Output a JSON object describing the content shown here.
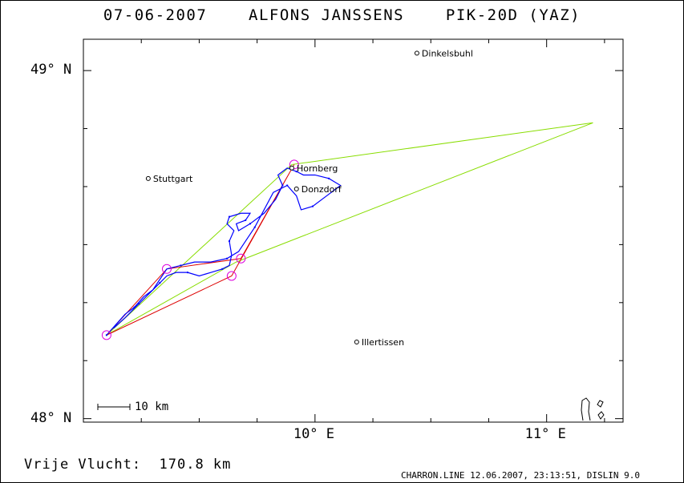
{
  "title": "07-06-2007    ALFONS JANSSENS    PIK-20D (YAZ)",
  "axes": {
    "lat_labels": [
      {
        "label": "49° N",
        "lat": 49.0
      },
      {
        "label": "48° N",
        "lat": 48.0
      }
    ],
    "lon_labels": [
      {
        "label": "10° E",
        "lon": 10.0
      },
      {
        "label": "11° E",
        "lon": 11.0
      }
    ],
    "lon_range": [
      9.0,
      11.33
    ],
    "lat_range": [
      47.99,
      49.09
    ]
  },
  "cities": [
    {
      "name": "Dinkelsbuhl",
      "lon": 10.44,
      "lat": 49.05
    },
    {
      "name": "Stuttgart",
      "lon": 9.28,
      "lat": 48.69
    },
    {
      "name": "Hornberg",
      "lon": 9.9,
      "lat": 48.72
    },
    {
      "name": "Donzdorf",
      "lon": 9.92,
      "lat": 48.66
    },
    {
      "name": "Illertissen",
      "lon": 10.18,
      "lat": 48.22
    }
  ],
  "task": {
    "turnpoints": [
      {
        "lon": 9.1,
        "lat": 48.24
      },
      {
        "lon": 9.36,
        "lat": 48.43
      },
      {
        "lon": 9.68,
        "lat": 48.46
      },
      {
        "lon": 9.91,
        "lat": 48.73
      },
      {
        "lon": 9.64,
        "lat": 48.41
      },
      {
        "lon": 9.1,
        "lat": 48.24
      }
    ],
    "sector_lines": [
      [
        {
          "lon": 9.1,
          "lat": 48.24
        },
        {
          "lon": 9.9,
          "lat": 48.73
        },
        {
          "lon": 11.2,
          "lat": 48.85
        },
        {
          "lon": 9.66,
          "lat": 48.45
        },
        {
          "lon": 9.1,
          "lat": 48.24
        }
      ]
    ]
  },
  "track": [
    {
      "lon": 9.1,
      "lat": 48.24
    },
    {
      "lon": 9.14,
      "lat": 48.27
    },
    {
      "lon": 9.18,
      "lat": 48.3
    },
    {
      "lon": 9.22,
      "lat": 48.32
    },
    {
      "lon": 9.26,
      "lat": 48.35
    },
    {
      "lon": 9.3,
      "lat": 48.37
    },
    {
      "lon": 9.33,
      "lat": 48.39
    },
    {
      "lon": 9.36,
      "lat": 48.41
    },
    {
      "lon": 9.4,
      "lat": 48.42
    },
    {
      "lon": 9.45,
      "lat": 48.42
    },
    {
      "lon": 9.5,
      "lat": 48.41
    },
    {
      "lon": 9.55,
      "lat": 48.42
    },
    {
      "lon": 9.6,
      "lat": 48.43
    },
    {
      "lon": 9.63,
      "lat": 48.44
    },
    {
      "lon": 9.64,
      "lat": 48.47
    },
    {
      "lon": 9.63,
      "lat": 48.51
    },
    {
      "lon": 9.65,
      "lat": 48.54
    },
    {
      "lon": 9.62,
      "lat": 48.56
    },
    {
      "lon": 9.63,
      "lat": 48.58
    },
    {
      "lon": 9.68,
      "lat": 48.59
    },
    {
      "lon": 9.72,
      "lat": 48.59
    },
    {
      "lon": 9.7,
      "lat": 48.57
    },
    {
      "lon": 9.66,
      "lat": 48.56
    },
    {
      "lon": 9.67,
      "lat": 48.54
    },
    {
      "lon": 9.72,
      "lat": 48.56
    },
    {
      "lon": 9.78,
      "lat": 48.59
    },
    {
      "lon": 9.83,
      "lat": 48.63
    },
    {
      "lon": 9.86,
      "lat": 48.67
    },
    {
      "lon": 9.84,
      "lat": 48.7
    },
    {
      "lon": 9.88,
      "lat": 48.72
    },
    {
      "lon": 9.92,
      "lat": 48.71
    },
    {
      "lon": 9.95,
      "lat": 48.7
    },
    {
      "lon": 10.0,
      "lat": 48.7
    },
    {
      "lon": 10.06,
      "lat": 48.69
    },
    {
      "lon": 10.11,
      "lat": 48.67
    },
    {
      "lon": 10.05,
      "lat": 48.64
    },
    {
      "lon": 9.99,
      "lat": 48.61
    },
    {
      "lon": 9.94,
      "lat": 48.6
    },
    {
      "lon": 9.92,
      "lat": 48.64
    },
    {
      "lon": 9.88,
      "lat": 48.67
    },
    {
      "lon": 9.82,
      "lat": 48.65
    },
    {
      "lon": 9.78,
      "lat": 48.6
    },
    {
      "lon": 9.74,
      "lat": 48.55
    },
    {
      "lon": 9.7,
      "lat": 48.51
    },
    {
      "lon": 9.67,
      "lat": 48.48
    },
    {
      "lon": 9.62,
      "lat": 48.46
    },
    {
      "lon": 9.55,
      "lat": 48.45
    },
    {
      "lon": 9.48,
      "lat": 48.45
    },
    {
      "lon": 9.42,
      "lat": 48.44
    },
    {
      "lon": 9.36,
      "lat": 48.43
    },
    {
      "lon": 9.3,
      "lat": 48.37
    },
    {
      "lon": 9.24,
      "lat": 48.33
    },
    {
      "lon": 9.18,
      "lat": 48.29
    },
    {
      "lon": 9.13,
      "lat": 48.26
    }
  ],
  "scale_bar": {
    "label": "10 km",
    "km": 10
  },
  "distance_text": "Vrije Vlucht:  170.8 km",
  "footer": "CHARRON.LINE 12.06.2007, 23:13:51, DISLIN 9.0",
  "colors": {
    "track": "#0000ff",
    "task": "#dd0000",
    "sector": "#88dd00",
    "turnpoint_circle": "#dd00dd",
    "frame": "#000000"
  }
}
